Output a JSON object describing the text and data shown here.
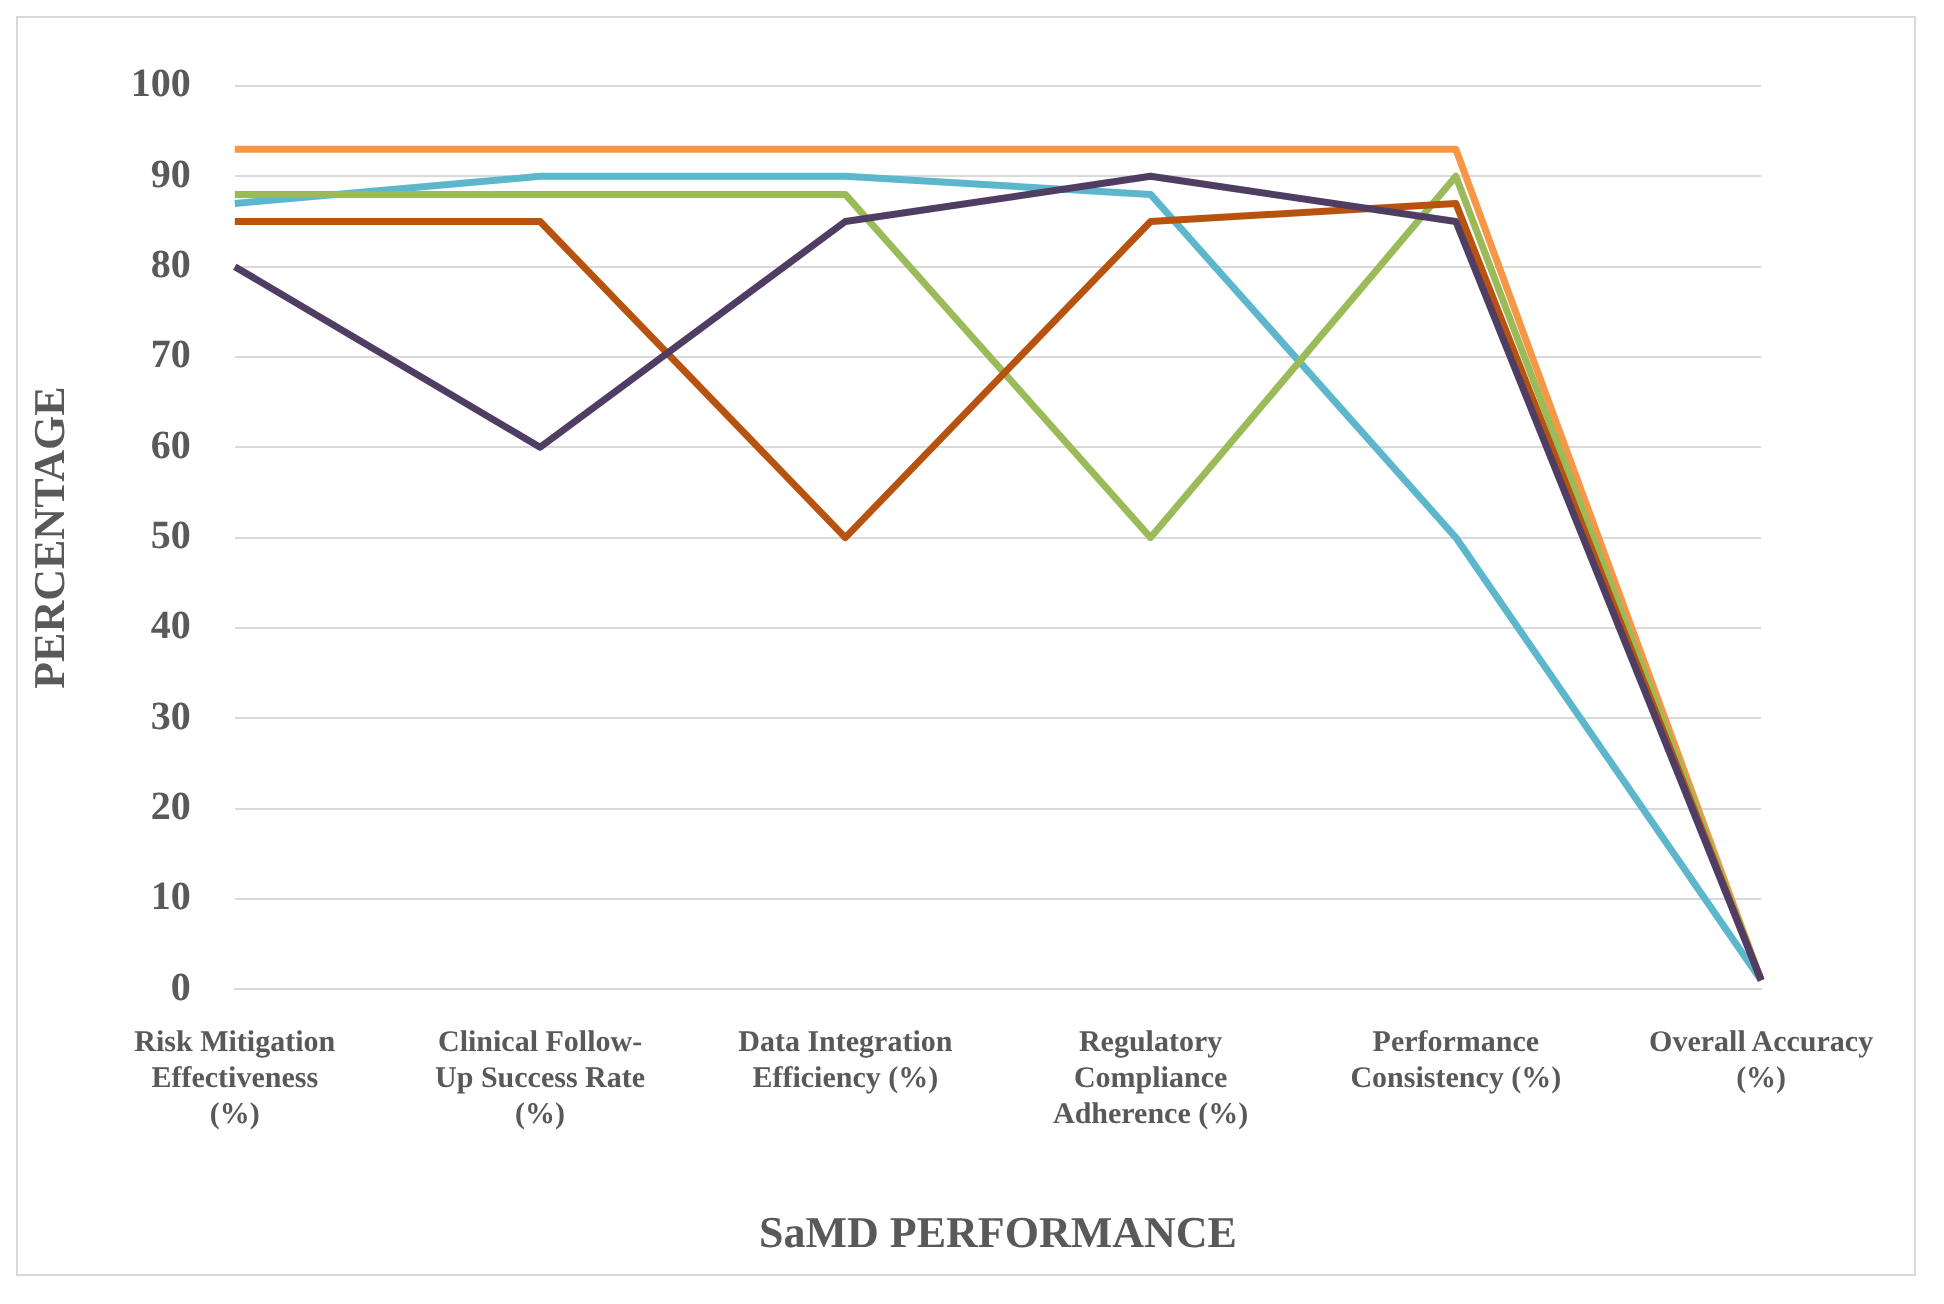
{
  "chart_data": {
    "type": "line",
    "xlabel": "SaMD PERFORMANCE",
    "ylabel": "PERCENTAGE",
    "categories": [
      "Risk Mitigation Effectiveness (%)",
      "Clinical Follow-Up Success Rate (%)",
      "Data Integration Efficiency (%)",
      "Regulatory Compliance Adherence (%)",
      "Performance Consistency (%)",
      "Overall Accuracy (%)"
    ],
    "series": [
      {
        "color": "#4f3d63",
        "values": [
          80,
          60,
          85,
          90,
          85,
          1
        ]
      },
      {
        "color": "#b8530f",
        "values": [
          85,
          85,
          50,
          85,
          87,
          1
        ]
      },
      {
        "color": "#9bbb59",
        "values": [
          88,
          88,
          88,
          50,
          90,
          1
        ]
      },
      {
        "color": "#5cb6cc",
        "values": [
          87,
          90,
          90,
          88,
          50,
          1
        ]
      },
      {
        "color": "#f79646",
        "values": [
          93,
          93,
          93,
          93,
          93,
          1
        ]
      }
    ],
    "ylim": [
      0,
      100
    ],
    "yticks": [
      0,
      10,
      20,
      30,
      40,
      50,
      60,
      70,
      80,
      90,
      100
    ],
    "grid": "y",
    "legend": false,
    "marker": "none",
    "line_style": "solid"
  }
}
